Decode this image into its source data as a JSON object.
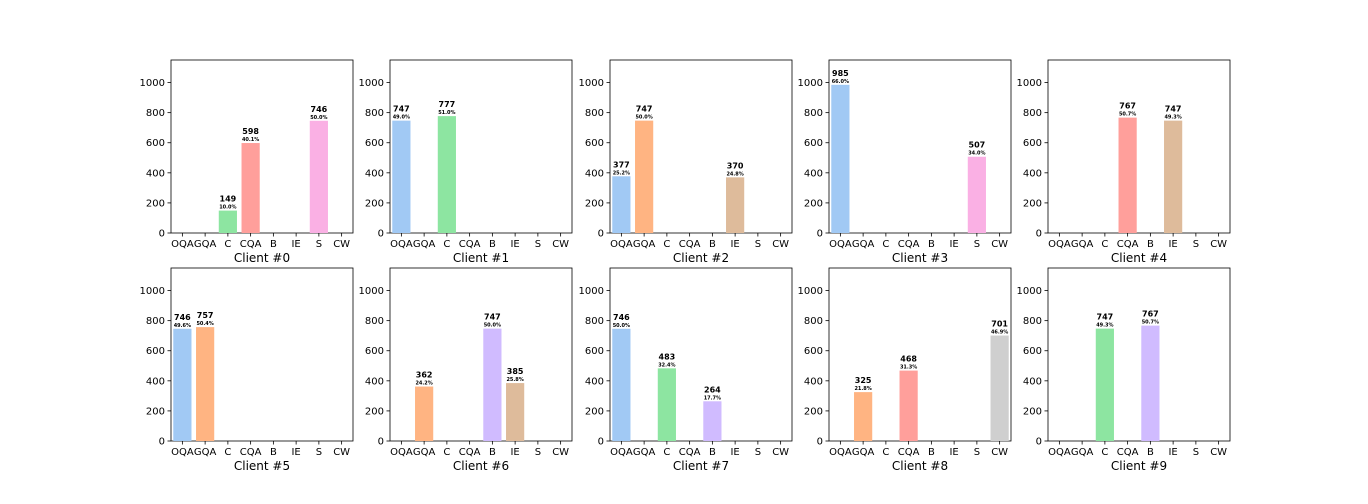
{
  "chart_data": {
    "type": "bar",
    "categories": [
      "OQA",
      "GQA",
      "C",
      "CQA",
      "B",
      "IE",
      "S",
      "CW"
    ],
    "ylim": [
      0,
      1150
    ],
    "yticks": [
      0,
      200,
      400,
      600,
      800,
      1000
    ],
    "grid": false,
    "colors": [
      "#a1c9f4",
      "#ffb482",
      "#8de5a1",
      "#ff9f9b",
      "#d0bbff",
      "#debb9b",
      "#fab0e4",
      "#cfcfcf"
    ],
    "subplots": [
      {
        "title": "Client #0",
        "values": [
          0,
          0,
          149,
          598,
          0,
          0,
          746,
          0
        ],
        "percents": [
          "",
          "",
          "10.0%",
          "40.1%",
          "",
          "",
          "50.0%",
          ""
        ]
      },
      {
        "title": "Client #1",
        "values": [
          747,
          0,
          777,
          0,
          0,
          0,
          0,
          0
        ],
        "percents": [
          "49.0%",
          "",
          "51.0%",
          "",
          "",
          "",
          "",
          ""
        ]
      },
      {
        "title": "Client #2",
        "values": [
          377,
          747,
          0,
          0,
          0,
          370,
          0,
          0
        ],
        "percents": [
          "25.2%",
          "50.0%",
          "",
          "",
          "",
          "24.8%",
          "",
          ""
        ]
      },
      {
        "title": "Client #3",
        "values": [
          985,
          0,
          0,
          0,
          0,
          0,
          507,
          0
        ],
        "percents": [
          "66.0%",
          "",
          "",
          "",
          "",
          "",
          "34.0%",
          ""
        ]
      },
      {
        "title": "Client #4",
        "values": [
          0,
          0,
          0,
          767,
          0,
          747,
          0,
          0
        ],
        "percents": [
          "",
          "",
          "",
          "50.7%",
          "",
          "49.3%",
          "",
          ""
        ]
      },
      {
        "title": "Client #5",
        "values": [
          746,
          757,
          0,
          0,
          0,
          0,
          0,
          0
        ],
        "percents": [
          "49.6%",
          "50.4%",
          "",
          "",
          "",
          "",
          "",
          ""
        ]
      },
      {
        "title": "Client #6",
        "values": [
          0,
          362,
          0,
          0,
          747,
          385,
          0,
          0
        ],
        "percents": [
          "",
          "24.2%",
          "",
          "",
          "50.0%",
          "25.8%",
          "",
          ""
        ]
      },
      {
        "title": "Client #7",
        "values": [
          746,
          0,
          483,
          0,
          264,
          0,
          0,
          0
        ],
        "percents": [
          "50.0%",
          "",
          "32.4%",
          "",
          "17.7%",
          "",
          "",
          ""
        ]
      },
      {
        "title": "Client #8",
        "values": [
          0,
          325,
          0,
          468,
          0,
          0,
          0,
          701
        ],
        "percents": [
          "",
          "21.8%",
          "",
          "31.3%",
          "",
          "",
          "",
          "46.9%"
        ]
      },
      {
        "title": "Client #9",
        "values": [
          0,
          0,
          747,
          0,
          767,
          0,
          0,
          0
        ],
        "percents": [
          "",
          "",
          "49.3%",
          "",
          "50.7%",
          "",
          "",
          ""
        ]
      }
    ]
  }
}
